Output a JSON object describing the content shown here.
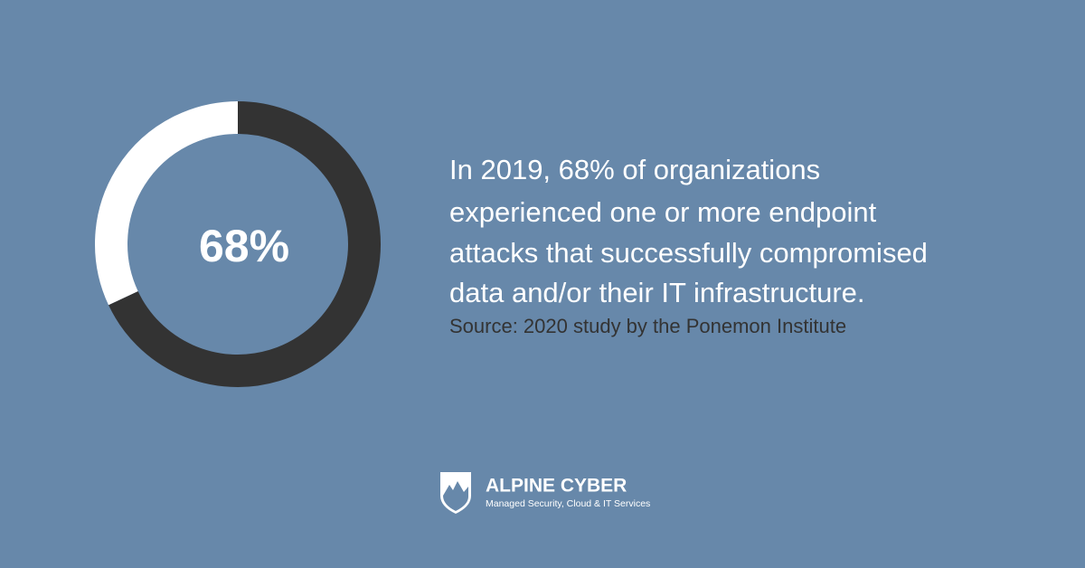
{
  "chart_data": {
    "type": "donut",
    "categories": [
      null,
      null
    ],
    "values": [
      68,
      32
    ],
    "colors": [
      "#333333",
      "#ffffff"
    ],
    "center_label": "68%"
  },
  "statement": [
    "In 2019, 68% of organizations",
    "experienced one or more endpoint",
    "attacks that successfully compromised",
    "data and/or their IT infrastructure."
  ],
  "source": "Source: 2020 study by the Ponemon Institute",
  "logo": {
    "name": "ALPINE CYBER",
    "tagline": "Managed Security, Cloud & IT Services"
  }
}
